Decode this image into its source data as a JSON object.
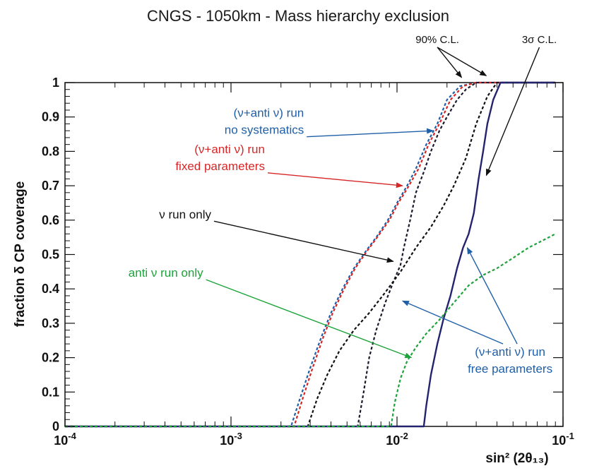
{
  "chart_data": {
    "type": "line",
    "title": "CNGS - 1050km - Mass hierarchy exclusion",
    "xlabel": "sin² (2θ₁₃)",
    "ylabel": "fraction δ CP coverage",
    "xscale": "log",
    "xlim": [
      0.0001,
      0.1
    ],
    "ylim": [
      0,
      1
    ],
    "x_ticks": [
      {
        "value": 0.0001,
        "base": "10",
        "exp": "-4"
      },
      {
        "value": 0.001,
        "base": "10",
        "exp": "-3"
      },
      {
        "value": 0.01,
        "base": "10",
        "exp": "-2"
      },
      {
        "value": 0.1,
        "base": "10",
        "exp": "-1"
      }
    ],
    "y_ticks": [
      "0",
      "0.1",
      "0.2",
      "0.3",
      "0.4",
      "0.5",
      "0.6",
      "0.7",
      "0.8",
      "0.9",
      "1"
    ],
    "grid": false,
    "legend": "none",
    "series": [
      {
        "color": "#1f5fa8",
        "dash": "dotted",
        "confidence": "90% C.L.",
        "x": [
          0.0001,
          0.0023,
          0.0026,
          0.003,
          0.0035,
          0.004,
          0.0047,
          0.0055,
          0.0065,
          0.0075,
          0.0088,
          0.01,
          0.0115,
          0.013,
          0.015,
          0.0175,
          0.02,
          0.024,
          0.03,
          0.04,
          0.09
        ],
        "y": [
          0,
          0,
          0.08,
          0.17,
          0.26,
          0.33,
          0.4,
          0.46,
          0.51,
          0.55,
          0.6,
          0.65,
          0.7,
          0.75,
          0.82,
          0.88,
          0.95,
          0.99,
          1,
          1,
          1
        ]
      },
      {
        "color": "#d62728",
        "dash": "dotted",
        "confidence": "90% C.L.",
        "x": [
          0.0001,
          0.0024,
          0.0027,
          0.0031,
          0.0036,
          0.0041,
          0.0048,
          0.0056,
          0.0066,
          0.0076,
          0.009,
          0.0102,
          0.0118,
          0.0135,
          0.0155,
          0.018,
          0.021,
          0.025,
          0.03,
          0.04,
          0.09
        ],
        "y": [
          0,
          0,
          0.08,
          0.17,
          0.26,
          0.33,
          0.4,
          0.46,
          0.51,
          0.55,
          0.6,
          0.65,
          0.7,
          0.75,
          0.82,
          0.88,
          0.95,
          0.99,
          1,
          1,
          1
        ]
      },
      {
        "color": "#1a1a2e",
        "dash": "dotted",
        "confidence": "90% C.L.",
        "x": [
          0.0001,
          0.0058,
          0.0063,
          0.0068,
          0.0075,
          0.0085,
          0.0095,
          0.0105,
          0.011,
          0.012,
          0.013,
          0.0145,
          0.016,
          0.018,
          0.02,
          0.023,
          0.026,
          0.03,
          0.04,
          0.09
        ],
        "y": [
          0,
          0,
          0.1,
          0.2,
          0.28,
          0.36,
          0.42,
          0.47,
          0.52,
          0.6,
          0.68,
          0.74,
          0.8,
          0.86,
          0.9,
          0.95,
          0.98,
          1,
          1,
          1
        ]
      },
      {
        "color": "#111111",
        "dash": "dotted",
        "confidence": "3σ C.L.",
        "x": [
          0.0001,
          0.0029,
          0.0033,
          0.0038,
          0.0045,
          0.0055,
          0.0068,
          0.0085,
          0.0105,
          0.013,
          0.016,
          0.019,
          0.022,
          0.026,
          0.03,
          0.035,
          0.04,
          0.09
        ],
        "y": [
          0,
          0,
          0.08,
          0.15,
          0.22,
          0.28,
          0.33,
          0.39,
          0.45,
          0.52,
          0.58,
          0.64,
          0.7,
          0.78,
          0.88,
          0.96,
          1,
          1
        ]
      },
      {
        "color": "#24246e",
        "dash": "solid",
        "confidence": "3σ C.L.",
        "x": [
          0.0001,
          0.0145,
          0.015,
          0.016,
          0.0175,
          0.019,
          0.021,
          0.023,
          0.025,
          0.027,
          0.029,
          0.031,
          0.033,
          0.035,
          0.038,
          0.042,
          0.09
        ],
        "y": [
          0,
          0,
          0.06,
          0.15,
          0.24,
          0.31,
          0.38,
          0.46,
          0.52,
          0.56,
          0.62,
          0.72,
          0.8,
          0.88,
          0.95,
          1,
          1
        ]
      },
      {
        "color": "#1ca33a",
        "dash": "dotted",
        "confidence": "90% C.L.",
        "x": [
          0.0001,
          0.0092,
          0.0097,
          0.0105,
          0.0115,
          0.013,
          0.015,
          0.018,
          0.022,
          0.027,
          0.033,
          0.04,
          0.05,
          0.062,
          0.075,
          0.09
        ],
        "y": [
          0,
          0,
          0.07,
          0.14,
          0.19,
          0.23,
          0.27,
          0.31,
          0.36,
          0.41,
          0.44,
          0.46,
          0.49,
          0.52,
          0.54,
          0.56
        ]
      }
    ],
    "annotations": [
      {
        "lines": [
          "(ν+anti ν) run",
          "no systematics"
        ],
        "color": "#1f5fa8",
        "anchor": "end",
        "pos": [
          0.00275,
          0.9
        ],
        "arrow_to": [
          [
            0.0165,
            0.86
          ]
        ]
      },
      {
        "lines": [
          "(ν+anti ν) run",
          "fixed parameters"
        ],
        "color": "#d62728",
        "anchor": "end",
        "pos": [
          0.0016,
          0.795
        ],
        "arrow_to": [
          [
            0.0108,
            0.7
          ]
        ]
      },
      {
        "lines": [
          "ν run only"
        ],
        "color": "#111111",
        "anchor": "end",
        "pos": [
          0.00076,
          0.605
        ],
        "arrow_to": [
          [
            0.0095,
            0.48
          ]
        ]
      },
      {
        "lines": [
          "anti ν run only"
        ],
        "color": "#1ca33a",
        "anchor": "end",
        "pos": [
          0.00068,
          0.435
        ],
        "arrow_to": [
          [
            0.0122,
            0.2
          ]
        ]
      },
      {
        "lines": [
          "(ν+anti ν) run",
          "free parameters"
        ],
        "color": "#1f5fa8",
        "anchor": "middle",
        "pos": [
          0.048,
          0.205
        ],
        "arrow_to": [
          [
            0.0108,
            0.365
          ],
          [
            0.0265,
            0.52
          ]
        ]
      },
      {
        "lines": [
          "90% C.L."
        ],
        "color": "#111111",
        "anchor": "middle",
        "pos": [
          0.0175,
          1.115
        ],
        "arrow_to": [
          [
            0.0245,
            1.015
          ],
          [
            0.0345,
            1.02
          ]
        ]
      },
      {
        "lines": [
          "3σ C.L."
        ],
        "color": "#111111",
        "anchor": "middle",
        "pos": [
          0.072,
          1.115
        ],
        "arrow_to": [
          [
            0.0345,
            0.73
          ]
        ]
      }
    ]
  }
}
